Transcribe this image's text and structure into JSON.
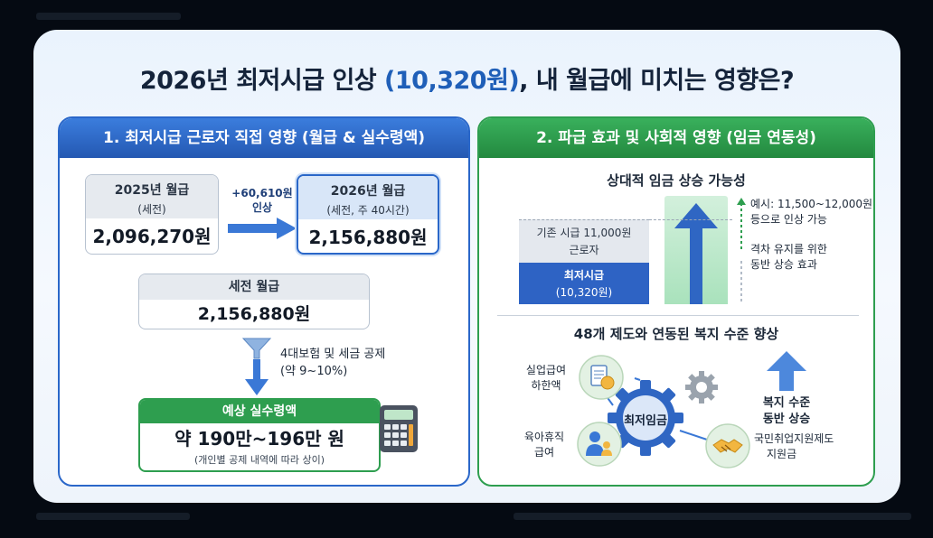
{
  "title": {
    "prefix": "2026년 최저시급 인상 ",
    "accent": "(10,320원)",
    "suffix": ", 내 월급에 미치는 영향은?"
  },
  "left_panel": {
    "header": "1. 최저시급 근로자 직접 영향 (월급 & 실수령액)",
    "salary_2025": {
      "label": "2025년 월급",
      "sub": "(세전)",
      "value": "2,096,270원"
    },
    "increase": {
      "amount": "+60,610원",
      "label": "인상"
    },
    "salary_2026": {
      "label": "2026년 월급",
      "sub": "(세전, 주 40시간)",
      "value": "2,156,880원"
    },
    "gross": {
      "label": "세전 월급",
      "value": "2,156,880원"
    },
    "deduction": {
      "line1": "4대보험 및 세금 공제",
      "line2": "(약 9~10%)"
    },
    "net": {
      "label": "예상 실수령액",
      "value": "약 190만~196만 원",
      "note": "(개인별 공제 내역에 따라 상이)"
    }
  },
  "right_panel": {
    "header": "2. 파급 효과 및 사회적 영향 (임금 연동성)",
    "wage_section": {
      "title": "상대적 임금 상승 가능성",
      "existing": {
        "line1": "기존 시급 11,000원",
        "line2": "근로자"
      },
      "minimum": {
        "line1": "최저시급",
        "line2": "(10,320원)"
      },
      "example": {
        "line1": "예시: 11,500~12,000원",
        "line2": "등으로 인상 가능"
      },
      "gap": {
        "line1": "격차 유지를 위한",
        "line2": "동반 상승 효과"
      }
    },
    "welfare_section": {
      "title": "48개 제도와 연동된 복지 수준 향상",
      "center": "최저임금",
      "unemployment": {
        "line1": "실업급여",
        "line2": "하한액"
      },
      "parental": {
        "line1": "육아휴직",
        "line2": "급여"
      },
      "employment": {
        "line1": "국민취업지원제도",
        "line2": "지원금"
      },
      "rise": {
        "line1": "복지 수준",
        "line2": "동반 상승"
      }
    }
  },
  "colors": {
    "blue": "#2a67c9",
    "green": "#2e9e4f",
    "navy": "#14233a"
  },
  "icons": [
    "funnel-icon",
    "calculator-icon",
    "document-coin-icon",
    "parent-child-icon",
    "handshake-icon",
    "gear-icon"
  ]
}
